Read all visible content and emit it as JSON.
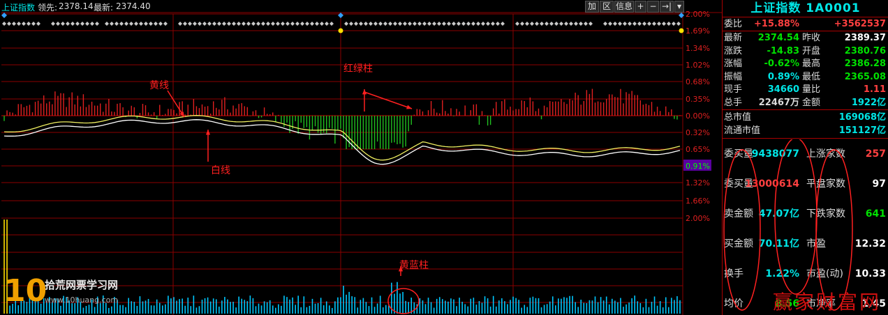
{
  "header": {
    "title": "上证指数",
    "lead_label": "领先:",
    "lead_value": "2378.14",
    "latest_label": "最新:",
    "latest_value": "2374.40"
  },
  "toolbar": {
    "add": "加",
    "section": "区",
    "info": "信息",
    "plus": "+",
    "minus": "−",
    "jump": "→|",
    "dropdown": "▾"
  },
  "price_axis": {
    "upper": [
      "2.00%",
      "1.69%",
      "1.34%",
      "1.02%",
      "0.68%",
      "0.35%",
      "0.00%"
    ],
    "lower": [
      "0.32%",
      "0.65%",
      "0.91%",
      "1.32%",
      "1.66%",
      "2.00%"
    ]
  },
  "annotations": {
    "yellow_line": "黄线",
    "white_line": "白线",
    "red_green_bar": "红绿柱",
    "yellow_blue_bar": "黄蓝柱"
  },
  "side": {
    "title": "上证指数 1A0001",
    "weibi": {
      "label": "委比",
      "pct": "+15.88%",
      "val": "+3562537"
    },
    "rows": [
      {
        "l1": "最新",
        "v1": "2374.54",
        "c1": "#00e000",
        "l2": "昨收",
        "v2": "2389.37",
        "c2": "#ffffff"
      },
      {
        "l1": "涨跌",
        "v1": "-14.83",
        "c1": "#00e000",
        "l2": "开盘",
        "v2": "2380.76",
        "c2": "#00e000"
      },
      {
        "l1": "涨幅",
        "v1": "-0.62%",
        "c1": "#00e000",
        "l2": "最高",
        "v2": "2386.28",
        "c2": "#00e000"
      },
      {
        "l1": "振幅",
        "v1": "0.89%",
        "c1": "#00e6e6",
        "l2": "最低",
        "v2": "2365.08",
        "c2": "#00e000"
      },
      {
        "l1": "现手",
        "v1": "34660",
        "c1": "#00e6e6",
        "l2": "量比",
        "v2": "1.11",
        "c2": "#ff4040"
      },
      {
        "l1": "总手",
        "v1": "22467万",
        "c1": "#dcdcdc",
        "l2": "金额",
        "v2": "1922亿",
        "c2": "#00e6e6"
      }
    ],
    "mktcap": [
      {
        "label": "总市值",
        "val": "169068亿"
      },
      {
        "label": "流通市值",
        "val": "151127亿"
      }
    ],
    "bottom": [
      {
        "l1": "委买量",
        "v1": "9438077",
        "c1": "#00e6e6",
        "l2": "上涨家数",
        "v2": "257",
        "c2": "#ff4040"
      },
      {
        "l1": "委买量",
        "v1": "13000614",
        "c1": "#ff4040",
        "l2": "平盘家数",
        "v2": "97",
        "c2": "#ffffff"
      },
      {
        "l1": "卖金额",
        "v1": "47.07亿",
        "c1": "#00e6e6",
        "l2": "下跌家数",
        "v2": "641",
        "c2": "#00e000"
      },
      {
        "l1": "买金额",
        "v1": "70.11亿",
        "c1": "#00e6e6",
        "l2": "市盈",
        "v2": "12.32",
        "c2": "#ffffff"
      },
      {
        "l1": "换手",
        "v1": "1.22%",
        "c1": "#00e6e6",
        "l2": "市盈(动)",
        "v2": "10.33",
        "c2": "#ffffff"
      },
      {
        "l1": "均价",
        "v1": "8.56",
        "c1": "#00e000",
        "l2": "市净率",
        "v2": "1.45",
        "c2": "#ffffff"
      }
    ],
    "watermark": "赢家财富网"
  },
  "logo": {
    "number": "10",
    "name": "拾荒网票学习网",
    "url": "www.10huang.com"
  },
  "colors": {
    "grid": "#8b0000",
    "yellow_line": "#f0f060",
    "white_line": "#ffffff",
    "up_bar": "#e02020",
    "down_bar": "#20c020",
    "volume": "#00c8ff",
    "axis_text": "#e02020"
  }
}
